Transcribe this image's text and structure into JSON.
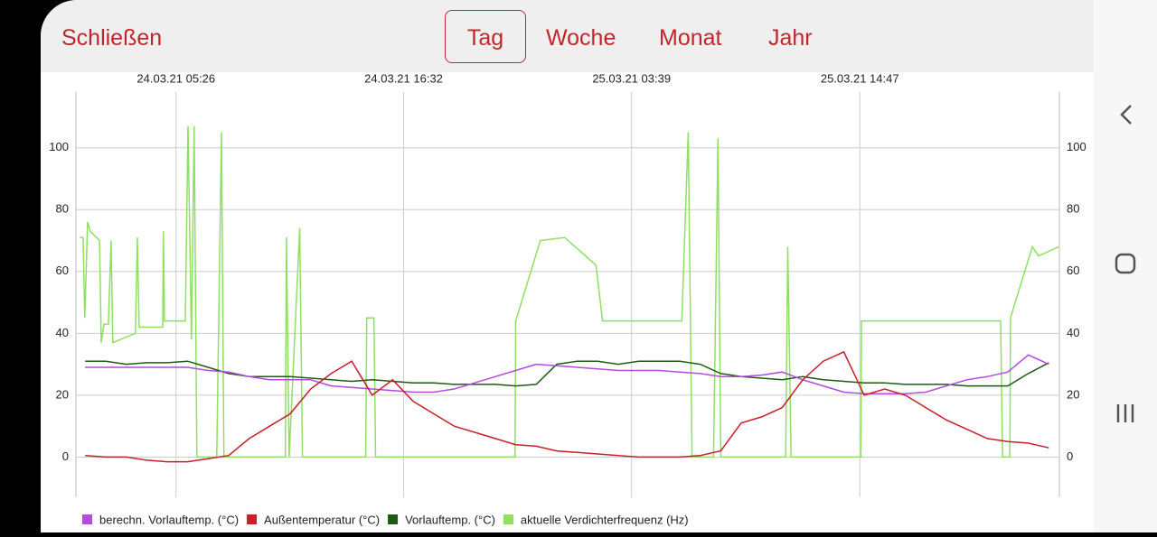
{
  "header": {
    "close": "Schließen",
    "tabs": [
      "Tag",
      "Woche",
      "Monat",
      "Jahr"
    ]
  },
  "chart_data": {
    "type": "line",
    "x": [
      "24.03.21 01:00",
      "24.03.21 02:00",
      "24.03.21 03:00",
      "24.03.21 04:00",
      "24.03.21 05:00",
      "24.03.21 06:00",
      "24.03.21 07:00",
      "24.03.21 08:00",
      "24.03.21 09:00",
      "24.03.21 10:00",
      "24.03.21 11:00",
      "24.03.21 12:00",
      "24.03.21 13:00",
      "24.03.21 14:00",
      "24.03.21 15:00",
      "24.03.21 16:00",
      "24.03.21 17:00",
      "24.03.21 18:00",
      "24.03.21 19:00",
      "24.03.21 20:00",
      "24.03.21 21:00",
      "24.03.21 22:00",
      "24.03.21 23:00",
      "25.03.21 00:00",
      "25.03.21 01:00",
      "25.03.21 02:00",
      "25.03.21 03:00",
      "25.03.21 04:00",
      "25.03.21 05:00",
      "25.03.21 06:00",
      "25.03.21 07:00",
      "25.03.21 08:00",
      "25.03.21 09:00",
      "25.03.21 10:00",
      "25.03.21 11:00",
      "25.03.21 12:00",
      "25.03.21 13:00",
      "25.03.21 14:00",
      "25.03.21 15:00",
      "25.03.21 16:00",
      "25.03.21 17:00",
      "25.03.21 18:00",
      "25.03.21 19:00",
      "25.03.21 20:00",
      "25.03.21 21:00",
      "25.03.21 22:00",
      "25.03.21 23:00",
      "26.03.21 00:00"
    ],
    "series": [
      {
        "name": "berechn. Vorlauftemp. (°C)",
        "color": "#b44ae0",
        "values": [
          29,
          29,
          29,
          29,
          29,
          29,
          28,
          27.5,
          26,
          25,
          25,
          25,
          23,
          22.5,
          22,
          21.5,
          21,
          21,
          22,
          24,
          26,
          28,
          30,
          29.5,
          29,
          28.5,
          28,
          28,
          28,
          27.5,
          27,
          26,
          26,
          26.5,
          27.5,
          25,
          23,
          21,
          20.5,
          20.5,
          20.5,
          21,
          23,
          25,
          26,
          27.5,
          33,
          30
        ]
      },
      {
        "name": "Außentemperatur (°C)",
        "color": "#c8202a",
        "values": [
          0.5,
          0,
          0,
          -1,
          -1.5,
          -1.5,
          -0.5,
          0.5,
          6,
          10,
          14,
          22,
          27,
          31,
          20,
          25,
          18,
          14,
          10,
          8,
          6,
          4,
          3.5,
          2,
          1.5,
          1,
          0.5,
          0,
          0,
          0,
          0.5,
          2,
          11,
          13,
          16,
          25,
          31,
          34,
          20,
          22,
          20,
          16,
          12,
          9,
          6,
          5,
          4.5,
          3
        ]
      },
      {
        "name": "Vorlauftemp. (°C)",
        "color": "#1e5a14",
        "values": [
          31,
          31,
          30,
          30.5,
          30.5,
          31,
          29,
          27,
          26,
          26,
          26,
          25.5,
          25,
          24.5,
          25,
          24.5,
          24,
          24,
          23.5,
          23.5,
          23.5,
          23,
          23.5,
          30,
          31,
          31,
          30,
          31,
          31,
          31,
          30,
          27,
          26,
          25.5,
          25,
          26,
          25,
          24.5,
          24,
          24,
          23.5,
          23.5,
          23.5,
          23,
          23,
          23,
          27,
          30.5
        ]
      },
      {
        "name": "aktuelle Verdichterfrequenz (Hz)",
        "color": "#8fe060",
        "x": [
          "24.03.21 00:44",
          "24.03.21 00:54",
          "24.03.21 00:59",
          "24.03.21 01:07",
          "24.03.21 01:15",
          "24.03.21 01:42",
          "24.03.21 01:47",
          "24.03.21 01:55",
          "24.03.21 02:08",
          "24.03.21 02:16",
          "24.03.21 02:21",
          "24.03.21 03:27",
          "24.03.21 03:33",
          "24.03.21 03:38",
          "24.03.21 04:47",
          "24.03.21 04:49",
          "24.03.21 04:52",
          "24.03.21 05:53",
          "24.03.21 06:01",
          "24.03.21 06:11",
          "24.03.21 06:19",
          "24.03.21 06:27",
          "24.03.21 07:25",
          "24.03.21 07:39",
          "24.03.21 07:46",
          "24.03.21 10:46",
          "24.03.21 10:49",
          "24.03.21 10:57",
          "24.03.21 11:28",
          "24.03.21 11:36",
          "24.03.21 14:41",
          "24.03.21 14:44",
          "24.03.21 15:05",
          "24.03.21 15:10",
          "24.03.21 21:58",
          "24.03.21 22:00",
          "24.03.21 23:12",
          "25.03.21 00:23",
          "25.03.21 01:55",
          "25.03.21 02:14",
          "25.03.21 06:06",
          "25.03.21 06:25",
          "25.03.21 06:36",
          "25.03.21 07:39",
          "25.03.21 07:52",
          "25.03.21 08:00",
          "25.03.21 11:10",
          "25.03.21 11:16",
          "25.03.21 11:26",
          "25.03.21 14:50",
          "25.03.21 14:52",
          "25.03.21 21:39",
          "25.03.21 21:45",
          "25.03.21 22:06",
          "25.03.21 22:08",
          "25.03.21 23:12",
          "25.03.21 23:30",
          "26.03.21 00:29"
        ],
        "values": [
          71,
          71,
          45,
          76,
          73,
          70,
          37,
          43,
          43,
          70,
          37,
          40,
          71,
          42,
          42,
          73,
          44,
          44,
          107,
          38,
          107,
          0,
          0,
          105,
          0,
          0,
          71,
          0,
          74,
          0,
          0,
          45,
          45,
          0,
          0,
          44,
          70,
          71,
          62,
          44,
          44,
          105,
          0,
          0,
          103,
          0,
          0,
          68,
          0,
          0,
          44,
          44,
          0,
          0,
          45,
          68,
          65,
          68
        ]
      }
    ],
    "xlim": [
      "24.03.21 00:33",
      "26.03.21 00:31"
    ],
    "xticks": [
      "24.03.21 05:26",
      "24.03.21 16:32",
      "25.03.21 03:39",
      "25.03.21 14:47"
    ],
    "ylim": [
      -13,
      118
    ],
    "yticks": [
      0,
      20,
      40,
      60,
      80,
      100
    ],
    "grid": true
  }
}
